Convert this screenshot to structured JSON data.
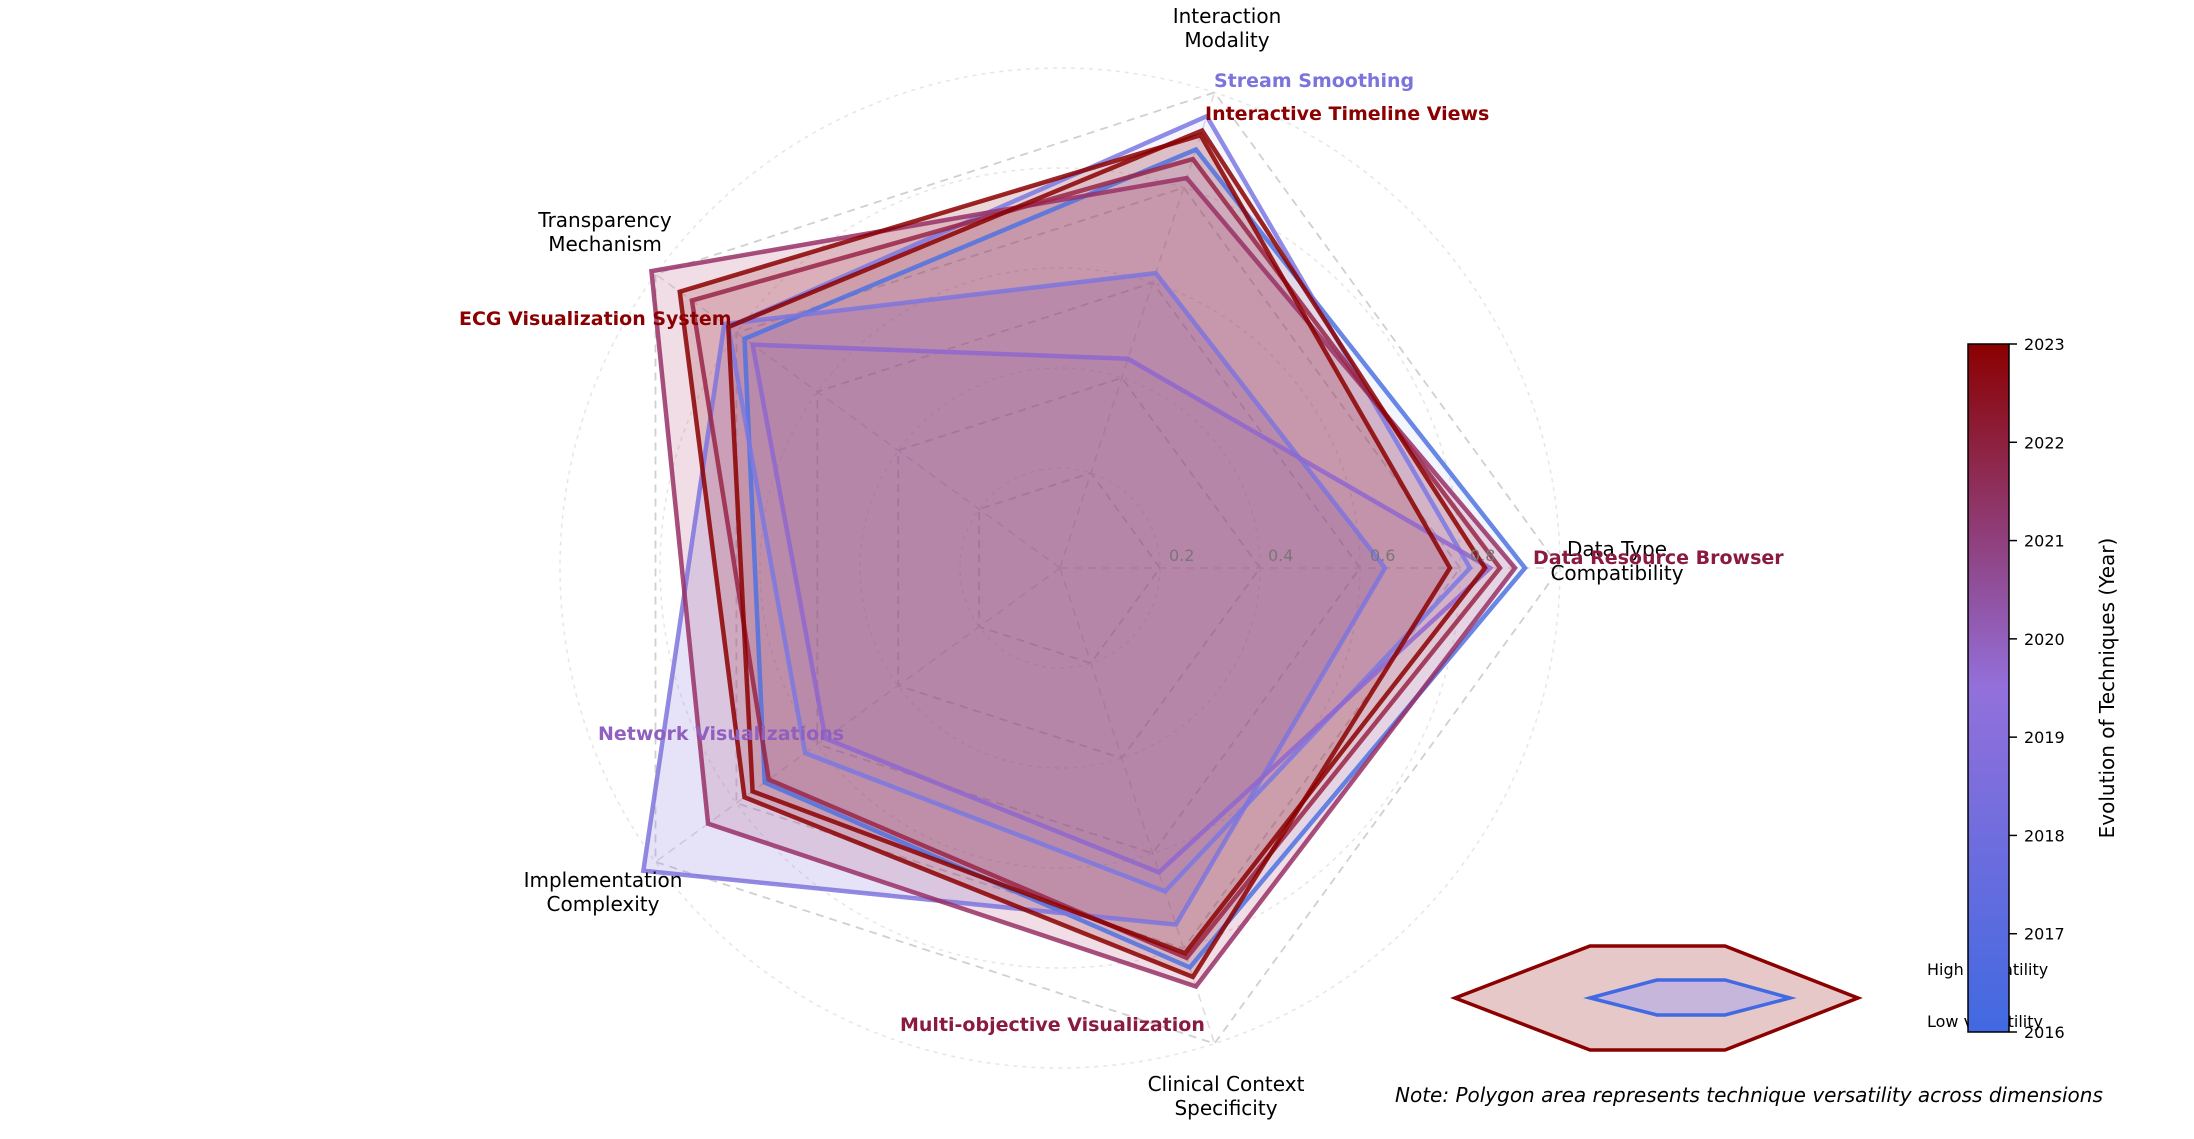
{
  "chart_data": {
    "type": "radar",
    "axes": [
      "Data Type\nCompatibility",
      "Interaction\nModality",
      "Transparency\nMechanism",
      "Implementation\nComplexity",
      "Clinical Context\nSpecificity"
    ],
    "rlim": [
      0,
      1.0
    ],
    "rticks": [
      "0.2",
      "0.4",
      "0.6",
      "0.8"
    ],
    "grid": true,
    "series": [
      {
        "year": 2017,
        "color": "#4f72e0",
        "values": [
          0.93,
          0.88,
          0.78,
          0.73,
          0.84
        ],
        "fill": false
      },
      {
        "year": 2019,
        "color": "#7a78e2",
        "values": [
          0.82,
          0.95,
          0.82,
          0.63,
          0.68
        ],
        "label": "Stream Smoothing",
        "fill": false
      },
      {
        "year": 2019.3,
        "color": "#7e74dd",
        "values": [
          0.65,
          0.62,
          0.83,
          1.03,
          0.75
        ],
        "fill": true,
        "fill_color": "#9d8fe6",
        "fill_opacity": 0.17
      },
      {
        "year": 2020,
        "color": "#8f66cf",
        "values": [
          0.86,
          0.44,
          0.76,
          0.58,
          0.64
        ],
        "label": "Network Visualizations",
        "fill": false
      },
      {
        "year": 2021.7,
        "color": "#983066",
        "values": [
          0.91,
          0.82,
          1.01,
          0.87,
          0.88
        ],
        "label": "Multi-objective Visualization",
        "fill": true,
        "fill_color": "#c87a92",
        "fill_opacity": 0.15
      },
      {
        "year": 2022,
        "color": "#992446",
        "values": [
          0.88,
          0.86,
          0.91,
          0.72,
          0.82
        ],
        "label": "Data Resource Browser",
        "fill": false
      },
      {
        "year": 2023,
        "color": "#8b0000",
        "values": [
          0.78,
          0.91,
          0.94,
          0.78,
          0.86
        ],
        "label": "ECG Visualization System",
        "fill": true,
        "fill_color": "#b0606a",
        "fill_opacity": 0.15
      },
      {
        "year": 2023,
        "color": "#8b0000",
        "values": [
          0.85,
          0.92,
          0.82,
          0.76,
          0.81
        ],
        "label": "Interactive Timeline Views",
        "fill": false
      }
    ],
    "series_labels": [
      {
        "text": "Stream Smoothing",
        "color": "#7a74dc"
      },
      {
        "text": "Interactive Timeline Views",
        "color": "#8b0000"
      },
      {
        "text": "ECG Visualization System",
        "color": "#8b0000"
      },
      {
        "text": "Network Visualizations",
        "color": "#9060c0"
      },
      {
        "text": "Multi-objective Visualization",
        "color": "#8a1a40"
      },
      {
        "text": "Data Resource Browser",
        "color": "#8a1a40"
      }
    ],
    "colorbar": {
      "title": "Evolution of Techniques (Year)",
      "min": 2016,
      "max": 2023,
      "ticks": [
        "2016",
        "2017",
        "2018",
        "2019",
        "2020",
        "2021",
        "2022",
        "2023"
      ],
      "colors": [
        "#4169e1",
        "#9370db",
        "#8b0000"
      ]
    },
    "legend": {
      "high_label": "High versatility",
      "low_label": "Low versatility"
    },
    "note": "Note: Polygon area represents technique versatility across dimensions"
  }
}
